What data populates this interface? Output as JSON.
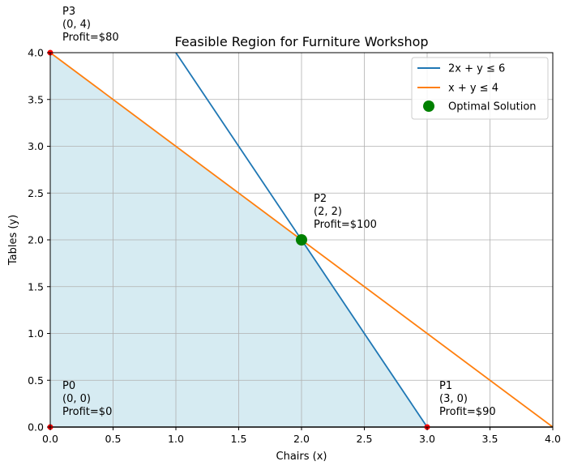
{
  "chart_data": {
    "type": "line",
    "title": "Feasible Region for Furniture Workshop",
    "xlabel": "Chairs (x)",
    "ylabel": "Tables (y)",
    "xlim": [
      0,
      4
    ],
    "ylim": [
      0,
      4
    ],
    "x_ticks": [
      "0.0",
      "0.5",
      "1.0",
      "1.5",
      "2.0",
      "2.5",
      "3.0",
      "3.5",
      "4.0"
    ],
    "y_ticks": [
      "0.0",
      "0.5",
      "1.0",
      "1.5",
      "2.0",
      "2.5",
      "3.0",
      "3.5",
      "4.0"
    ],
    "grid": true,
    "legend_position": "top-right",
    "series": [
      {
        "name": "2x + y ≤ 6",
        "color": "#1f77b4",
        "points": [
          [
            1,
            4
          ],
          [
            3,
            0
          ]
        ]
      },
      {
        "name": "x + y ≤ 4",
        "color": "#ff7f0e",
        "points": [
          [
            0,
            4
          ],
          [
            4,
            0
          ]
        ]
      }
    ],
    "feasible_region": {
      "color": "#add8e6",
      "polygon": [
        [
          0,
          0
        ],
        [
          3,
          0
        ],
        [
          2,
          2
        ],
        [
          0,
          4
        ]
      ]
    },
    "optimal_solution": {
      "name": "Optimal Solution",
      "color": "#008000",
      "x": 2,
      "y": 2
    },
    "vertices": [
      {
        "name": "P0",
        "coord": "(0, 0)",
        "profit": "Profit=$0",
        "x": 0,
        "y": 0
      },
      {
        "name": "P1",
        "coord": "(3, 0)",
        "profit": "Profit=$90",
        "x": 3,
        "y": 0
      },
      {
        "name": "P2",
        "coord": "(2, 2)",
        "profit": "Profit=$100",
        "x": 2,
        "y": 2
      },
      {
        "name": "P3",
        "coord": "(0, 4)",
        "profit": "Profit=$80",
        "x": 0,
        "y": 4
      }
    ],
    "vertex_color": "#ff0000"
  }
}
